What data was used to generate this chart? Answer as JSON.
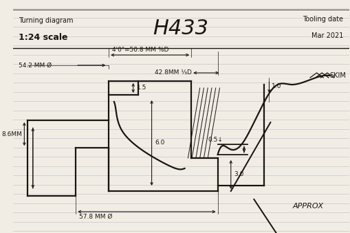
{
  "bg_color": "#f2ede4",
  "line_color": "#1a1510",
  "ruled_color": "#c5cfd8",
  "title": "H433",
  "top_left1": "Turning diagram",
  "top_left2": "1:24 scale",
  "top_right1": "Tooling date",
  "top_right2": "Mar 2021",
  "label_40": "4'0\"=50.8",
  "label_MM": "MM %D",
  "label_542": "54.2 MM Ø",
  "label_428": "42.8MM ⅓D",
  "label_10": "1.0",
  "label_05": "0.5",
  "label_15": "1.5",
  "label_60": "6.0",
  "label_30": "3.0",
  "label_86": "8.6MM",
  "label_578": "57.8 MM Ø",
  "label_skim": "SKIM",
  "label_approx": "APPROX",
  "lw": 1.6,
  "lw_thin": 0.7
}
